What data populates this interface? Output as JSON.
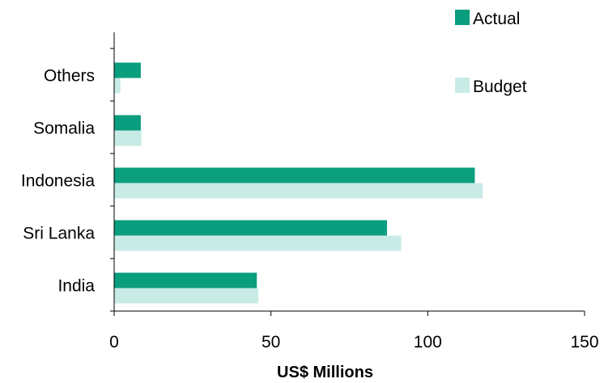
{
  "chart_data": {
    "type": "bar",
    "orientation": "horizontal",
    "categories": [
      "Others",
      "Somalia",
      "Indonesia",
      "Sri Lanka",
      "India"
    ],
    "series": [
      {
        "name": "Actual",
        "values": [
          8.5,
          8.5,
          115,
          87,
          45.5
        ],
        "color": "#0a9e7e"
      },
      {
        "name": "Budget",
        "values": [
          2,
          8.7,
          117.5,
          91.5,
          46
        ],
        "color": "#c9ebe6"
      }
    ],
    "x_ticks": [
      "0",
      "50",
      "100",
      "150"
    ],
    "xlim": [
      0,
      150
    ],
    "xlabel": "US$ Millions",
    "ylabel": "",
    "title": "",
    "grid": false,
    "legend_position": "top-right"
  }
}
